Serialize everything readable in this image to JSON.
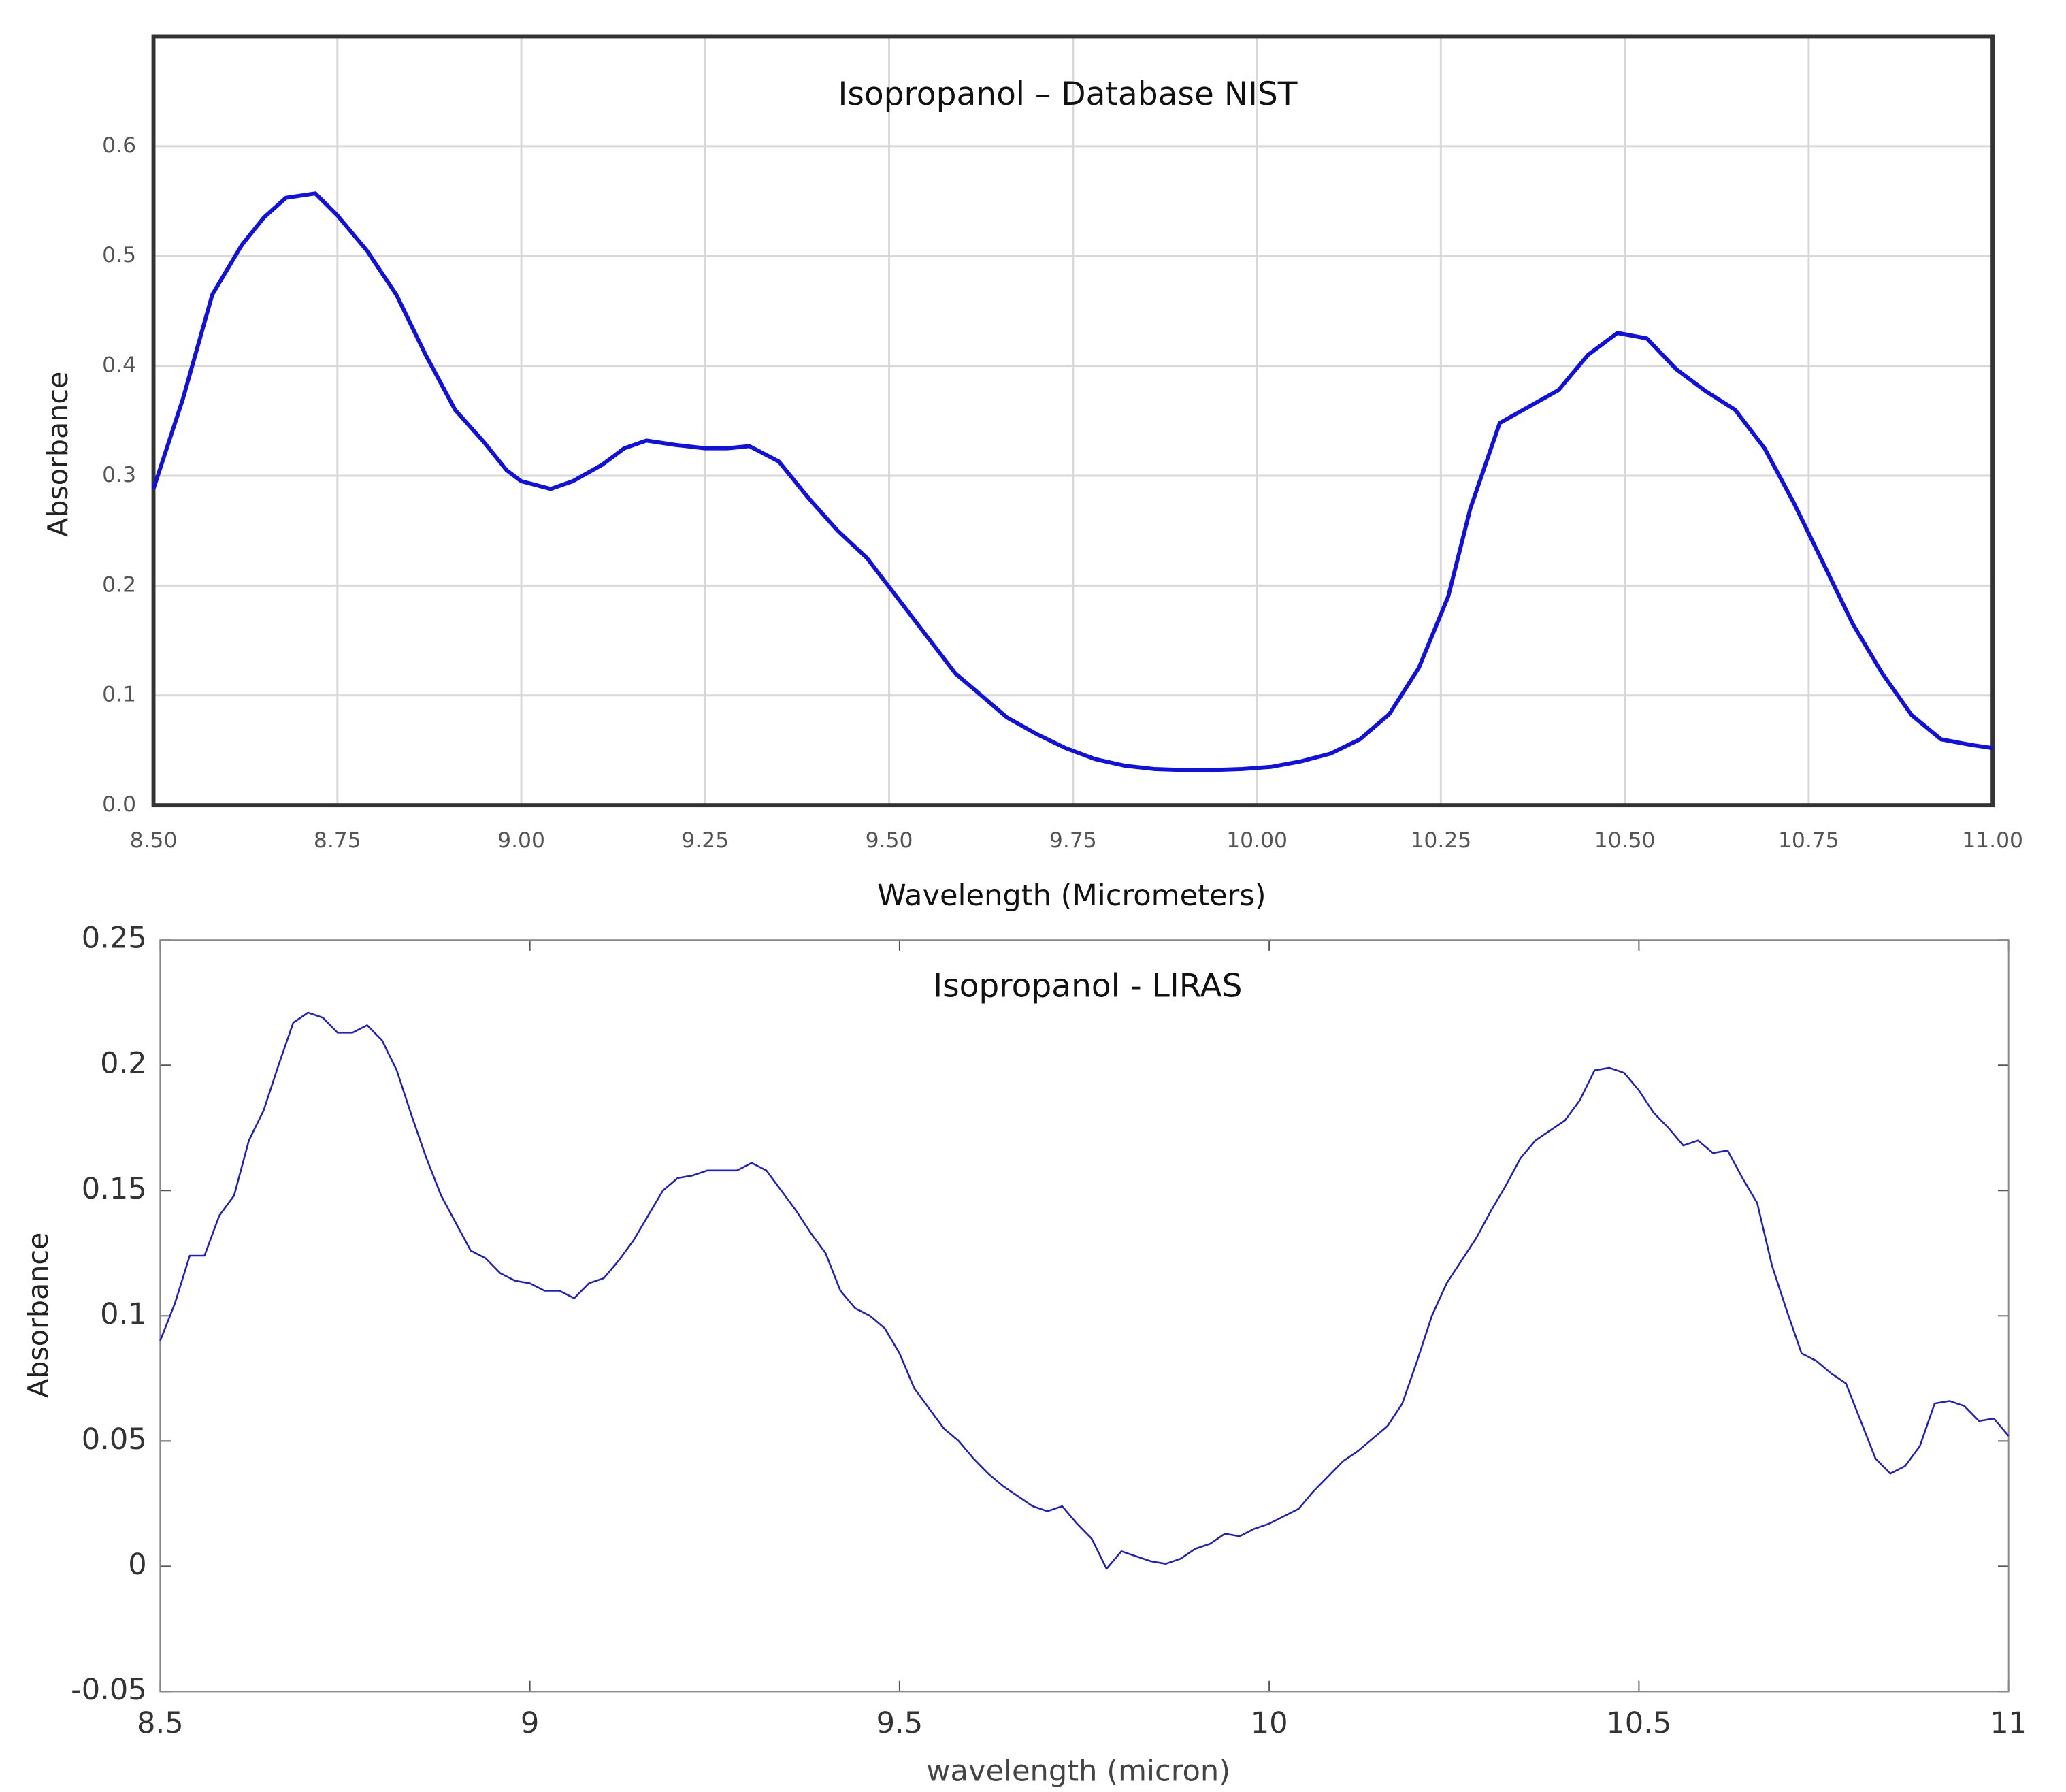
{
  "chart_data": [
    {
      "type": "line",
      "title": "Isopropanol – Database NIST",
      "x_label": "Wavelength (Micrometers)",
      "y_label": "Absorbance",
      "color": "#1010e0",
      "grid": true,
      "xlim": [
        8.5,
        11
      ],
      "xticks": [
        {
          "value": 8.5,
          "label": "8.50"
        },
        8.75,
        {
          "value": 9,
          "label": "9.00"
        },
        9.25,
        {
          "value": 9.5,
          "label": "9.50"
        },
        9.75,
        {
          "value": 10,
          "label": "10.00"
        },
        10.25,
        {
          "value": 10.5,
          "label": "10.50"
        },
        10.75,
        {
          "value": 11,
          "label": "11.00"
        }
      ],
      "ylim": [
        0,
        0.7
      ],
      "yticks": [
        {
          "value": 0,
          "label": "0.0"
        },
        0.1,
        0.2,
        0.3,
        0.4,
        0.5,
        0.6
      ],
      "x": [
        8.5,
        8.54,
        8.58,
        8.62,
        8.65,
        8.68,
        8.72,
        8.75,
        8.79,
        8.83,
        8.87,
        8.91,
        8.95,
        8.98,
        9.0,
        9.04,
        9.07,
        9.11,
        9.14,
        9.17,
        9.21,
        9.25,
        9.28,
        9.31,
        9.35,
        9.39,
        9.43,
        9.47,
        9.51,
        9.55,
        9.59,
        9.62,
        9.66,
        9.7,
        9.74,
        9.78,
        9.82,
        9.86,
        9.9,
        9.94,
        9.98,
        10.02,
        10.06,
        10.1,
        10.14,
        10.18,
        10.22,
        10.26,
        10.29,
        10.33,
        10.37,
        10.41,
        10.45,
        10.49,
        10.53,
        10.57,
        10.61,
        10.65,
        10.69,
        10.73,
        10.77,
        10.81,
        10.85,
        10.89,
        10.93,
        10.97,
        11.0
      ],
      "values": [
        0.288,
        0.37,
        0.465,
        0.51,
        0.535,
        0.553,
        0.557,
        0.537,
        0.505,
        0.465,
        0.41,
        0.36,
        0.33,
        0.305,
        0.295,
        0.288,
        0.295,
        0.31,
        0.325,
        0.332,
        0.328,
        0.325,
        0.325,
        0.327,
        0.313,
        0.28,
        0.25,
        0.225,
        0.19,
        0.155,
        0.12,
        0.103,
        0.08,
        0.065,
        0.052,
        0.042,
        0.036,
        0.033,
        0.032,
        0.032,
        0.033,
        0.035,
        0.04,
        0.047,
        0.06,
        0.083,
        0.125,
        0.19,
        0.27,
        0.348,
        0.363,
        0.378,
        0.41,
        0.43,
        0.425,
        0.397,
        0.377,
        0.36,
        0.325,
        0.275,
        0.22,
        0.165,
        0.12,
        0.082,
        0.06,
        0.055,
        0.052
      ]
    },
    {
      "type": "line",
      "title": "Isopropanol - LIRAS",
      "x_label": "wavelength (micron)",
      "y_label": "Absorbance",
      "color": "#2020c0",
      "grid": false,
      "xlim": [
        8.5,
        11
      ],
      "xticks": [
        8.5,
        9,
        9.5,
        10,
        10.5,
        11
      ],
      "ylim": [
        -0.05,
        0.25
      ],
      "yticks": [
        -0.05,
        0,
        0.05,
        0.1,
        0.15,
        0.2,
        0.25
      ],
      "x": [
        8.5,
        8.52,
        8.54,
        8.56,
        8.58,
        8.6,
        8.62,
        8.64,
        8.66,
        8.68,
        8.7,
        8.72,
        8.74,
        8.76,
        8.78,
        8.8,
        8.82,
        8.84,
        8.86,
        8.88,
        8.9,
        8.92,
        8.94,
        8.96,
        8.98,
        9.0,
        9.02,
        9.04,
        9.06,
        9.08,
        9.1,
        9.12,
        9.14,
        9.16,
        9.18,
        9.2,
        9.22,
        9.24,
        9.26,
        9.28,
        9.3,
        9.32,
        9.34,
        9.36,
        9.38,
        9.4,
        9.42,
        9.44,
        9.46,
        9.48,
        9.5,
        9.52,
        9.54,
        9.56,
        9.58,
        9.6,
        9.62,
        9.64,
        9.66,
        9.68,
        9.7,
        9.72,
        9.74,
        9.76,
        9.78,
        9.8,
        9.82,
        9.84,
        9.86,
        9.88,
        9.9,
        9.92,
        9.94,
        9.96,
        9.98,
        10.0,
        10.02,
        10.04,
        10.06,
        10.08,
        10.1,
        10.12,
        10.14,
        10.16,
        10.18,
        10.2,
        10.22,
        10.24,
        10.26,
        10.28,
        10.3,
        10.32,
        10.34,
        10.36,
        10.38,
        10.4,
        10.42,
        10.44,
        10.46,
        10.48,
        10.5,
        10.52,
        10.54,
        10.56,
        10.58,
        10.6,
        10.62,
        10.64,
        10.66,
        10.68,
        10.7,
        10.72,
        10.74,
        10.76,
        10.78,
        10.8,
        10.82,
        10.84,
        10.86,
        10.88,
        10.9,
        10.92,
        10.94,
        10.96,
        10.98,
        11.0
      ],
      "values": [
        0.09,
        0.105,
        0.124,
        0.124,
        0.14,
        0.148,
        0.17,
        0.182,
        0.2,
        0.217,
        0.221,
        0.219,
        0.213,
        0.213,
        0.216,
        0.21,
        0.198,
        0.18,
        0.163,
        0.148,
        0.137,
        0.126,
        0.123,
        0.117,
        0.114,
        0.113,
        0.11,
        0.11,
        0.107,
        0.113,
        0.115,
        0.122,
        0.13,
        0.14,
        0.15,
        0.155,
        0.156,
        0.158,
        0.158,
        0.158,
        0.161,
        0.158,
        0.15,
        0.142,
        0.133,
        0.125,
        0.11,
        0.103,
        0.1,
        0.095,
        0.085,
        0.071,
        0.063,
        0.055,
        0.05,
        0.043,
        0.037,
        0.032,
        0.028,
        0.024,
        0.022,
        0.024,
        0.017,
        0.011,
        -0.001,
        0.006,
        0.004,
        0.002,
        0.001,
        0.003,
        0.007,
        0.009,
        0.013,
        0.012,
        0.015,
        0.017,
        0.02,
        0.023,
        0.03,
        0.036,
        0.042,
        0.046,
        0.051,
        0.056,
        0.065,
        0.082,
        0.1,
        0.113,
        0.122,
        0.131,
        0.142,
        0.152,
        0.163,
        0.17,
        0.174,
        0.178,
        0.186,
        0.198,
        0.199,
        0.197,
        0.19,
        0.181,
        0.175,
        0.168,
        0.17,
        0.165,
        0.166,
        0.155,
        0.145,
        0.12,
        0.102,
        0.085,
        0.082,
        0.077,
        0.073,
        0.058,
        0.043,
        0.037,
        0.04,
        0.048,
        0.065,
        0.066,
        0.064,
        0.058,
        0.059,
        0.052
      ]
    }
  ]
}
